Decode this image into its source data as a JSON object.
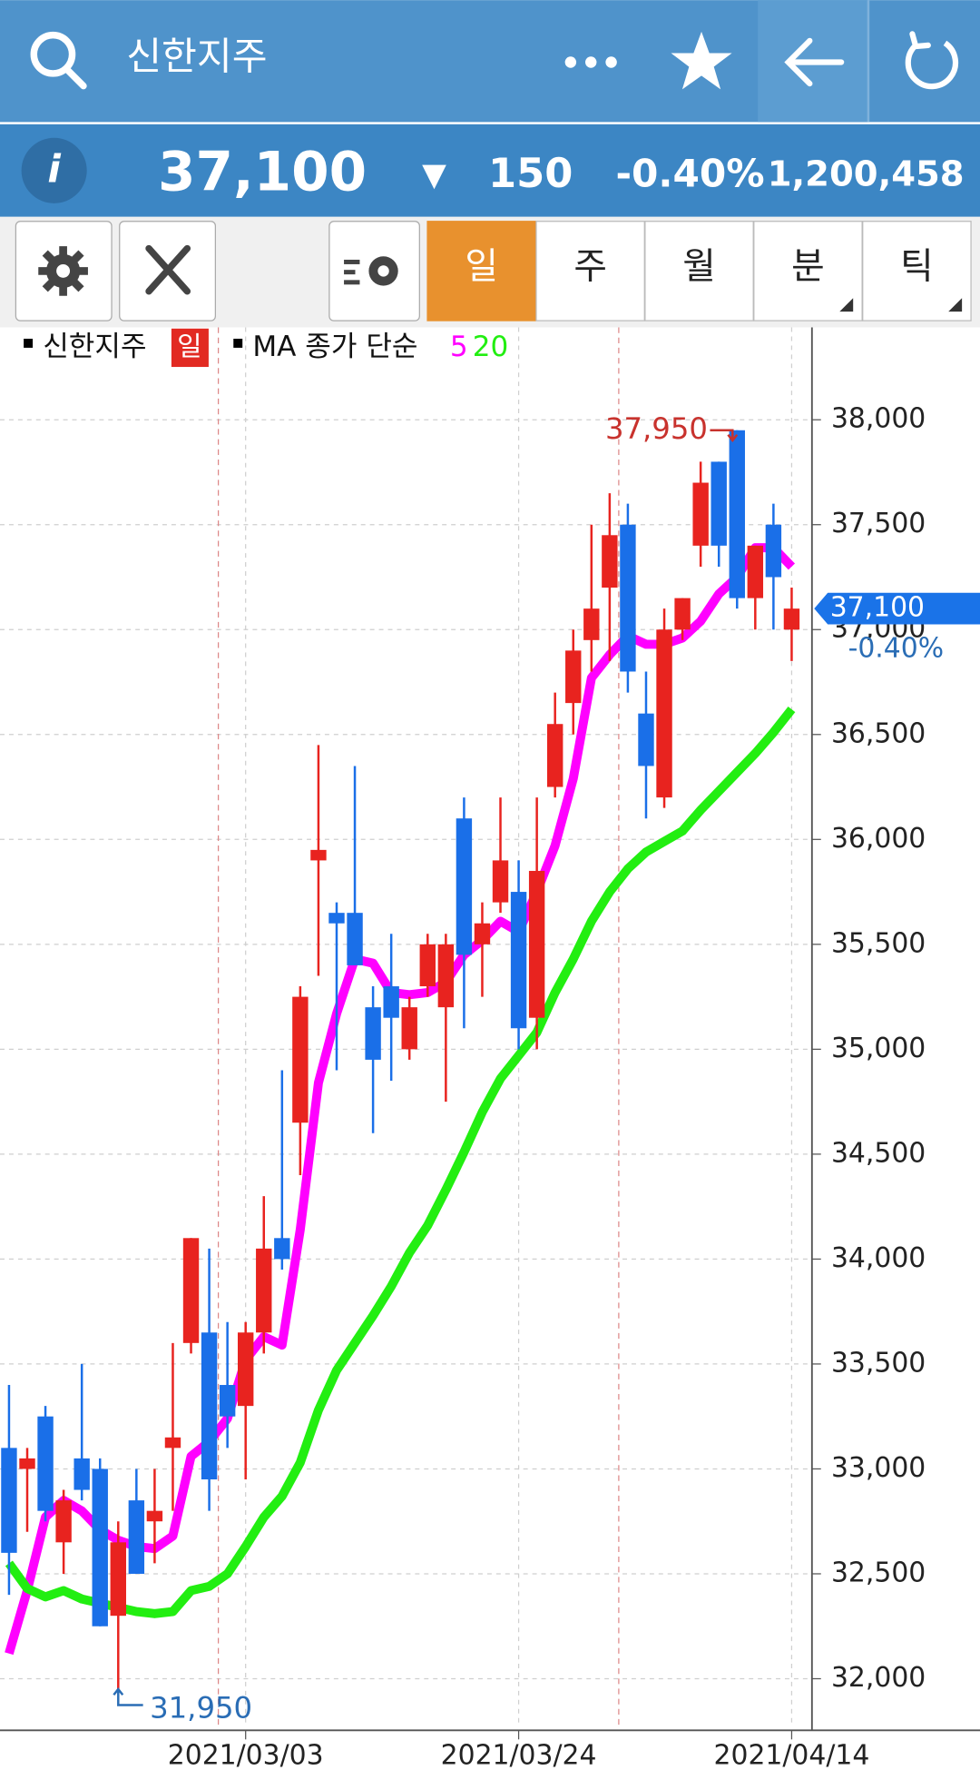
{
  "header": {
    "title": "신한지주"
  },
  "quote": {
    "info": "i",
    "price": "37,100",
    "direction": "▼",
    "change": "150",
    "change_rate": "-0.40%",
    "volume": "1,200,458"
  },
  "toolbar": {
    "tabs": [
      "일",
      "주",
      "월",
      "분",
      "틱"
    ]
  },
  "chart_data": {
    "type": "candlestick",
    "name": "신한지주",
    "period": "일",
    "ma_label": "MA 종가 단순",
    "categories": [
      null,
      null,
      null,
      null,
      null,
      null,
      null,
      null,
      null,
      null,
      null,
      null,
      null,
      "2021/03/03",
      null,
      null,
      null,
      null,
      null,
      null,
      null,
      null,
      null,
      null,
      null,
      null,
      null,
      null,
      "2021/03/24",
      null,
      null,
      null,
      null,
      null,
      null,
      null,
      null,
      null,
      null,
      null,
      null,
      null,
      null,
      "2021/04/14"
    ],
    "open": [
      33100,
      33000,
      33250,
      32650,
      33050,
      33000,
      32300,
      32850,
      32750,
      33100,
      33600,
      33650,
      33400,
      33300,
      33650,
      34100,
      34650,
      35900,
      35650,
      35650,
      35200,
      35300,
      35000,
      35300,
      35200,
      36100,
      35500,
      35700,
      35750,
      35150,
      36250,
      36650,
      36950,
      37200,
      37500,
      36600,
      36200,
      37000,
      37400,
      37800,
      37950,
      37150,
      37500,
      37000
    ],
    "high": [
      33400,
      33100,
      33300,
      32900,
      33500,
      33050,
      32750,
      33000,
      33000,
      33600,
      34100,
      34050,
      33700,
      33700,
      34300,
      34900,
      35300,
      36450,
      35700,
      36350,
      35300,
      35550,
      35250,
      35550,
      35550,
      36200,
      35700,
      36200,
      35900,
      36200,
      36700,
      37000,
      37500,
      37650,
      37600,
      36800,
      37100,
      37150,
      37800,
      37800,
      37950,
      37400,
      37600,
      37200
    ],
    "low": [
      32400,
      32700,
      32750,
      32500,
      32850,
      32250,
      31950,
      32500,
      32550,
      32800,
      33550,
      32800,
      33100,
      32950,
      33550,
      33950,
      34400,
      35350,
      34900,
      35400,
      34600,
      34850,
      34950,
      35250,
      34750,
      35100,
      35250,
      35650,
      35000,
      35000,
      36200,
      36500,
      36800,
      36850,
      36700,
      36100,
      36150,
      36950,
      37300,
      37300,
      37100,
      37000,
      37000,
      36850
    ],
    "close": [
      32600,
      33050,
      32800,
      32850,
      32900,
      32250,
      32650,
      32500,
      32800,
      33150,
      34100,
      32950,
      33250,
      33650,
      34050,
      34000,
      35250,
      35950,
      35600,
      35400,
      34950,
      35150,
      35200,
      35500,
      35500,
      35450,
      35600,
      35900,
      35100,
      35850,
      36550,
      36900,
      37100,
      37450,
      36800,
      36350,
      37000,
      37150,
      37700,
      37400,
      37150,
      37400,
      37250,
      37100
    ],
    "up_color": "#e8231f",
    "down_color": "#1a6fe8",
    "series": [
      {
        "name": "5",
        "color": "#ff00ff",
        "values": [
          32120,
          32420,
          32770,
          32850,
          32800,
          32710,
          32660,
          32630,
          32620,
          32680,
          33060,
          33130,
          33240,
          33520,
          33630,
          33590,
          34140,
          34840,
          35170,
          35430,
          35410,
          35270,
          35260,
          35270,
          35320,
          35450,
          35520,
          35610,
          35560,
          35750,
          35970,
          36290,
          36770,
          36880,
          36970,
          36930,
          36930,
          36960,
          37040,
          37170,
          37250,
          37390,
          37390,
          37300
        ]
      },
      {
        "name": "20",
        "color": "#22ee11",
        "values": [
          32550,
          32430,
          32390,
          32420,
          32380,
          32360,
          32340,
          32320,
          32310,
          32320,
          32420,
          32440,
          32500,
          32630,
          32770,
          32870,
          33030,
          33280,
          33470,
          33600,
          33730,
          33870,
          34030,
          34160,
          34330,
          34510,
          34700,
          34860,
          34970,
          35080,
          35270,
          35430,
          35610,
          35750,
          35860,
          35940,
          35990,
          36040,
          36140,
          36230,
          36320,
          36410,
          36510,
          36620
        ]
      }
    ],
    "ylim": [
      31770,
      38440
    ],
    "yticks": [
      {
        "value": 32000,
        "label": "32,000"
      },
      {
        "value": 32500,
        "label": "32,500"
      },
      {
        "value": 33000,
        "label": "33,000"
      },
      {
        "value": 33500,
        "label": "33,500"
      },
      {
        "value": 34000,
        "label": "34,000"
      },
      {
        "value": 34500,
        "label": "34,500"
      },
      {
        "value": 35000,
        "label": "35,000"
      },
      {
        "value": 35500,
        "label": "35,500"
      },
      {
        "value": 36000,
        "label": "36,000"
      },
      {
        "value": 36500,
        "label": "36,500"
      },
      {
        "value": 37000,
        "label": "37,000"
      },
      {
        "value": 37500,
        "label": "37,500"
      },
      {
        "value": 38000,
        "label": "38,000"
      }
    ],
    "grid": true,
    "max_marker": {
      "value": 37950,
      "label": "37,950"
    },
    "min_marker": {
      "value": 31950,
      "label": "31,950"
    },
    "last": {
      "value": 37100,
      "label": "37,100"
    }
  }
}
